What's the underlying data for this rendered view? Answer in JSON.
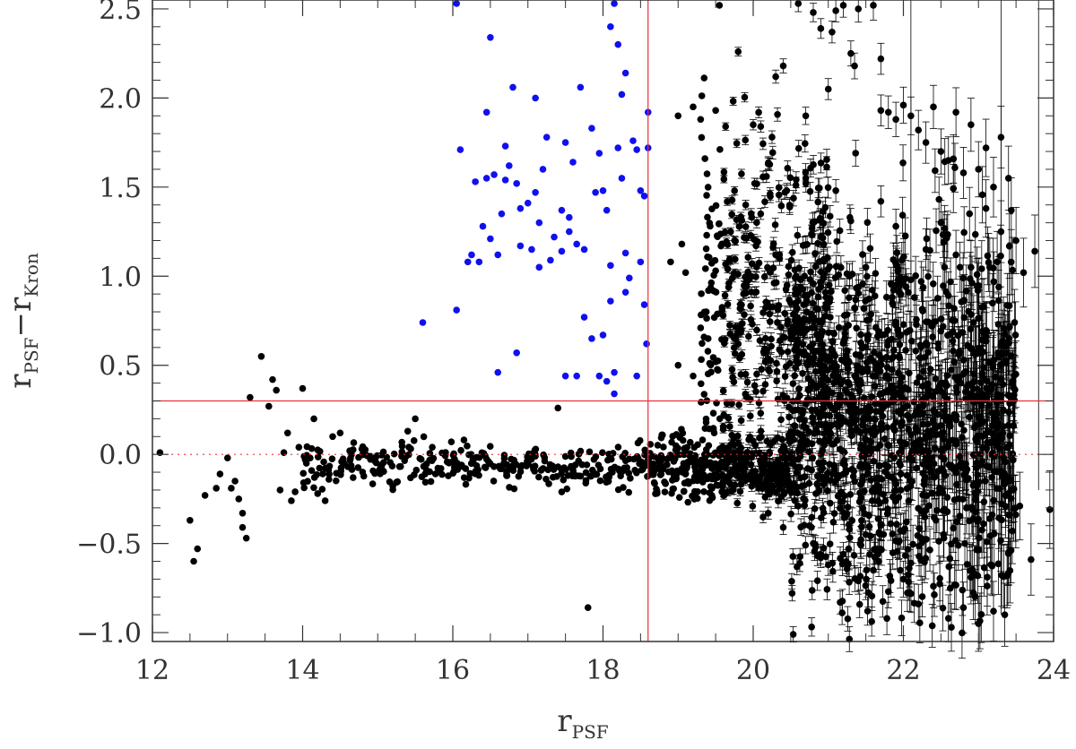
{
  "chart_data": {
    "type": "scatter",
    "xlabel": "r",
    "xlabel_sub": "PSF",
    "ylabel_parts": [
      "r",
      "PSF",
      "−r",
      "Kron"
    ],
    "xlim": [
      12,
      24
    ],
    "ylim": [
      -1.05,
      2.55
    ],
    "x_ticks": [
      12,
      14,
      16,
      18,
      20,
      22,
      24
    ],
    "x_tick_labels": [
      "12",
      "14",
      "16",
      "18",
      "20",
      "22",
      "24"
    ],
    "y_ticks": [
      -1.0,
      -0.5,
      0.0,
      0.5,
      1.0,
      1.5,
      2.0,
      2.5
    ],
    "y_tick_labels": [
      "−1.0",
      "−0.5",
      "0.0",
      "0.5",
      "1.0",
      "1.5",
      "2.0",
      "2.5"
    ],
    "reference_lines": [
      {
        "orientation": "vertical",
        "value": 18.6,
        "style": "solid",
        "color": "#e8323c"
      },
      {
        "orientation": "horizontal",
        "value": 0.3,
        "style": "solid",
        "color": "#e8323c"
      },
      {
        "orientation": "horizontal",
        "value": 0.0,
        "style": "dotted",
        "color": "#e8323c"
      }
    ],
    "colors": {
      "blue_series": "#1010ee",
      "black_series": "#000000",
      "reference": "#e8323c"
    },
    "series": [
      {
        "color": "blue",
        "points": [
          [
            15.6,
            0.74
          ],
          [
            16.05,
            2.53
          ],
          [
            16.05,
            0.81
          ],
          [
            16.1,
            1.71
          ],
          [
            16.2,
            1.08
          ],
          [
            16.3,
            1.53
          ],
          [
            16.35,
            1.08
          ],
          [
            16.4,
            1.28
          ],
          [
            16.45,
            1.92
          ],
          [
            16.5,
            2.34
          ],
          [
            16.5,
            1.21
          ],
          [
            16.55,
            1.57
          ],
          [
            16.6,
            1.12
          ],
          [
            16.6,
            0.46
          ],
          [
            16.65,
            1.35
          ],
          [
            16.7,
            1.54
          ],
          [
            16.7,
            1.73
          ],
          [
            16.8,
            2.06
          ],
          [
            16.85,
            1.52
          ],
          [
            16.9,
            1.38
          ],
          [
            16.9,
            1.17
          ],
          [
            17.0,
            1.41
          ],
          [
            17.05,
            1.15
          ],
          [
            17.1,
            2.0
          ],
          [
            17.1,
            1.47
          ],
          [
            17.15,
            1.3
          ],
          [
            17.15,
            1.05
          ],
          [
            17.2,
            1.6
          ],
          [
            17.25,
            1.78
          ],
          [
            17.3,
            1.09
          ],
          [
            17.35,
            1.22
          ],
          [
            17.45,
            1.37
          ],
          [
            17.5,
            1.75
          ],
          [
            17.55,
            1.25
          ],
          [
            17.6,
            1.64
          ],
          [
            17.65,
            1.18
          ],
          [
            17.7,
            2.06
          ],
          [
            17.75,
            1.15
          ],
          [
            17.85,
            1.83
          ],
          [
            17.9,
            1.47
          ],
          [
            17.95,
            1.69
          ],
          [
            18.0,
            1.48
          ],
          [
            18.05,
            1.37
          ],
          [
            18.1,
            1.06
          ],
          [
            18.1,
            2.4
          ],
          [
            18.15,
            2.53
          ],
          [
            18.15,
            0.46
          ],
          [
            18.2,
            2.3
          ],
          [
            18.2,
            1.72
          ],
          [
            18.25,
            2.02
          ],
          [
            18.25,
            1.55
          ],
          [
            18.3,
            1.13
          ],
          [
            18.3,
            2.14
          ],
          [
            18.35,
            0.99
          ],
          [
            18.4,
            1.76
          ],
          [
            18.45,
            1.71
          ],
          [
            18.45,
            0.44
          ],
          [
            18.5,
            1.48
          ],
          [
            18.55,
            0.84
          ],
          [
            18.58,
            0.62
          ],
          [
            18.6,
            1.72
          ],
          [
            18.6,
            1.92
          ],
          [
            18.55,
            1.45
          ],
          [
            18.5,
            1.08
          ],
          [
            18.1,
            0.86
          ],
          [
            18.0,
            0.67
          ],
          [
            17.95,
            0.44
          ],
          [
            17.5,
            0.44
          ],
          [
            17.65,
            0.44
          ],
          [
            18.15,
            0.34
          ],
          [
            17.75,
            0.77
          ],
          [
            16.85,
            0.57
          ],
          [
            17.55,
            1.33
          ],
          [
            17.45,
            1.14
          ],
          [
            18.3,
            0.91
          ],
          [
            18.05,
            0.41
          ],
          [
            16.75,
            1.62
          ],
          [
            16.45,
            1.55
          ],
          [
            16.25,
            1.12
          ],
          [
            17.85,
            0.65
          ]
        ]
      },
      {
        "color": "black",
        "points": [
          [
            12.1,
            0.01
          ],
          [
            12.5,
            -0.37
          ],
          [
            12.55,
            -0.6
          ],
          [
            12.6,
            -0.53
          ],
          [
            12.7,
            -0.23
          ],
          [
            12.85,
            -0.19
          ],
          [
            12.9,
            -0.11
          ],
          [
            13.0,
            -0.02
          ],
          [
            13.05,
            -0.19
          ],
          [
            13.1,
            -0.15
          ],
          [
            13.15,
            -0.25
          ],
          [
            13.2,
            -0.33
          ],
          [
            13.2,
            -0.41
          ],
          [
            13.25,
            -0.47
          ],
          [
            13.3,
            0.32
          ],
          [
            13.45,
            0.55
          ],
          [
            13.55,
            0.27
          ],
          [
            13.6,
            0.42
          ],
          [
            13.65,
            0.36
          ],
          [
            13.7,
            -0.2
          ],
          [
            13.75,
            0.01
          ],
          [
            13.8,
            0.12
          ],
          [
            13.85,
            -0.26
          ],
          [
            13.9,
            -0.21
          ],
          [
            13.95,
            0.04
          ],
          [
            14.0,
            0.37
          ],
          [
            14.05,
            -0.05
          ],
          [
            14.1,
            -0.02
          ],
          [
            14.15,
            0.2
          ],
          [
            14.2,
            -0.22
          ],
          [
            14.3,
            -0.26
          ],
          [
            14.35,
            -0.14
          ],
          [
            14.4,
            0.1
          ],
          [
            14.5,
            0.12
          ],
          [
            17.4,
            0.26
          ],
          [
            15.5,
            0.2
          ],
          [
            15.4,
            0.13
          ],
          [
            17.8,
            -0.86
          ],
          [
            19.0,
            1.9
          ],
          [
            19.2,
            1.95
          ],
          [
            19.3,
            1.88
          ],
          [
            19.5,
            1.93
          ],
          [
            19.55,
            2.52
          ],
          [
            19.8,
            2.26
          ],
          [
            20.0,
            1.85
          ],
          [
            20.1,
            1.84
          ],
          [
            20.2,
            1.63
          ],
          [
            20.3,
            2.12
          ],
          [
            20.4,
            2.18
          ],
          [
            20.6,
            2.53
          ],
          [
            20.7,
            1.9
          ],
          [
            20.8,
            2.48
          ],
          [
            20.9,
            2.39
          ],
          [
            21.0,
            2.05
          ],
          [
            21.05,
            2.37
          ],
          [
            21.1,
            2.49
          ],
          [
            21.2,
            2.52
          ],
          [
            21.3,
            2.25
          ],
          [
            21.35,
            2.18
          ],
          [
            21.4,
            2.5
          ],
          [
            21.6,
            2.52
          ],
          [
            21.7,
            2.22
          ],
          [
            21.7,
            1.93
          ],
          [
            21.8,
            1.92
          ],
          [
            21.9,
            1.88
          ],
          [
            22.0,
            1.96
          ],
          [
            22.1,
            1.9
          ],
          [
            22.2,
            1.82
          ],
          [
            22.3,
            1.75
          ],
          [
            22.4,
            1.95
          ],
          [
            22.5,
            1.7
          ],
          [
            22.6,
            1.65
          ],
          [
            22.7,
            1.92
          ],
          [
            22.8,
            1.58
          ],
          [
            22.9,
            1.85
          ],
          [
            23.0,
            1.6
          ],
          [
            23.1,
            1.72
          ],
          [
            23.2,
            1.5
          ],
          [
            23.3,
            1.78
          ],
          [
            23.4,
            1.55
          ],
          [
            23.5,
            1.2
          ],
          [
            23.6,
            1.02
          ],
          [
            23.75,
            1.14
          ],
          [
            23.95,
            -0.31
          ],
          [
            23.7,
            -0.59
          ],
          [
            23.55,
            -0.29
          ],
          [
            23.45,
            -0.43
          ],
          [
            23.35,
            -0.9
          ],
          [
            19.0,
            0.5
          ],
          [
            19.2,
            0.44
          ],
          [
            19.4,
            0.65
          ],
          [
            19.6,
            0.78
          ],
          [
            19.8,
            0.62
          ],
          [
            19.9,
            0.45
          ],
          [
            19.3,
            0.71
          ],
          [
            19.1,
            1.02
          ],
          [
            18.9,
            1.08
          ],
          [
            19.05,
            1.18
          ],
          [
            19.5,
            1.03
          ],
          [
            19.7,
            1.25
          ],
          [
            19.9,
            1.4
          ],
          [
            20.1,
            1.35
          ],
          [
            20.3,
            1.12
          ],
          [
            20.5,
            0.85
          ],
          [
            20.7,
            1.55
          ],
          [
            20.9,
            1.22
          ],
          [
            21.1,
            1.48
          ],
          [
            21.3,
            1.31
          ],
          [
            21.5,
            1.05
          ],
          [
            21.7,
            1.42
          ],
          [
            21.9,
            1.28
          ],
          [
            22.1,
            0.98
          ],
          [
            22.3,
            1.15
          ],
          [
            22.5,
            1.3
          ],
          [
            22.7,
            1.12
          ],
          [
            22.9,
            1.05
          ],
          [
            23.1,
            1.38
          ],
          [
            23.3,
            1.25
          ],
          [
            20.2,
            -0.33
          ],
          [
            20.4,
            -0.41
          ],
          [
            20.6,
            -0.29
          ],
          [
            20.8,
            -0.5
          ],
          [
            21.0,
            -0.62
          ],
          [
            21.2,
            -0.56
          ],
          [
            21.4,
            -0.71
          ],
          [
            21.6,
            -0.65
          ],
          [
            21.8,
            -0.77
          ],
          [
            22.0,
            -0.7
          ],
          [
            22.2,
            -0.84
          ],
          [
            22.4,
            -0.74
          ],
          [
            22.6,
            -0.92
          ],
          [
            22.8,
            -0.86
          ],
          [
            23.0,
            -0.95
          ],
          [
            23.2,
            -0.88
          ],
          [
            20.9,
            -0.58
          ],
          [
            21.5,
            -0.45
          ],
          [
            22.1,
            -0.61
          ],
          [
            22.9,
            -0.69
          ]
        ],
        "bulk_regions": [
          {
            "x_range": [
              14.0,
              18.6
            ],
            "y_center": -0.06,
            "y_spread": 0.06,
            "points": 320
          },
          {
            "x_range": [
              18.6,
              20.5
            ],
            "y_center": -0.08,
            "y_spread": 0.09,
            "points": 380
          },
          {
            "x_range": [
              19.3,
              21.0
            ],
            "y_center": 0.85,
            "y_spread": 0.85,
            "points": 420
          },
          {
            "x_range": [
              20.5,
              23.5
            ],
            "y_center": 0.2,
            "y_spread": 0.85,
            "points": 1300
          }
        ]
      }
    ]
  }
}
